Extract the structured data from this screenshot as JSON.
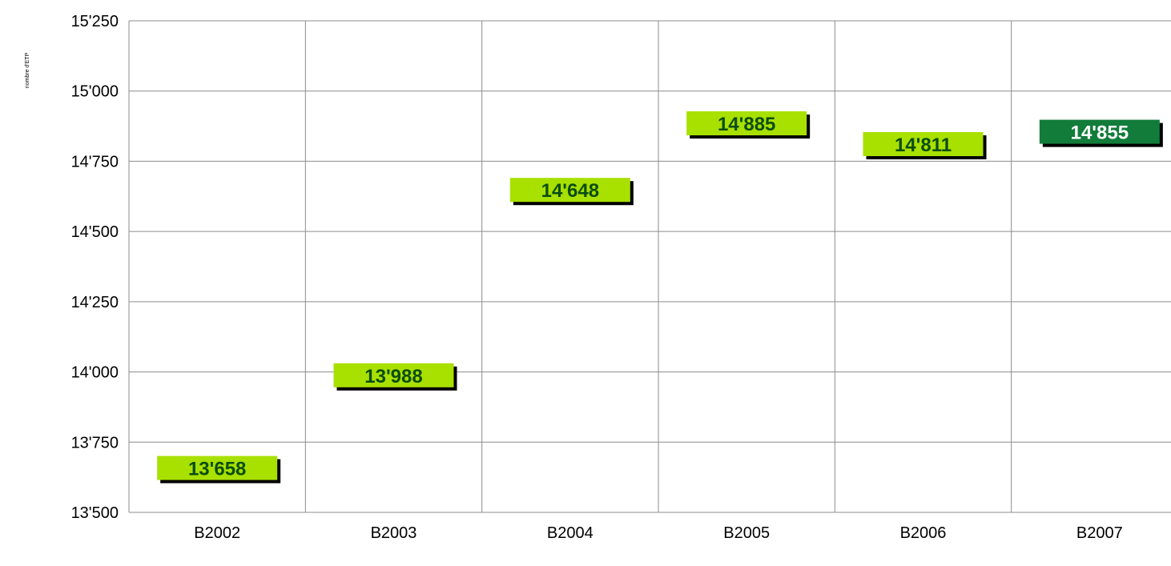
{
  "chart_data": {
    "type": "scatter",
    "title": "",
    "xlabel": "",
    "ylabel": "nombre d'ETP",
    "categories": [
      "B2002",
      "B2003",
      "B2004",
      "B2005",
      "B2006",
      "B2007"
    ],
    "values": [
      13658,
      13988,
      14648,
      14885,
      14811,
      14855
    ],
    "value_labels": [
      "13'658",
      "13'988",
      "14'648",
      "14'885",
      "14'811",
      "14'855"
    ],
    "ylim": [
      13500,
      15250
    ],
    "yticks": [
      13500,
      13750,
      14000,
      14250,
      14500,
      14750,
      15000,
      15250
    ],
    "ytick_labels": [
      "13'500",
      "13'750",
      "14'000",
      "14'250",
      "14'500",
      "14'750",
      "15'000",
      "15'250"
    ],
    "grid": true,
    "legend": "none",
    "colors": {
      "marker_fill": "#a8e000",
      "marker_text": "#0b4d12",
      "highlight_fill": "#127c3a",
      "highlight_text": "#ffffff",
      "shadow": "#000000",
      "grid": "#8c8c8c"
    },
    "highlight_index": 5
  }
}
